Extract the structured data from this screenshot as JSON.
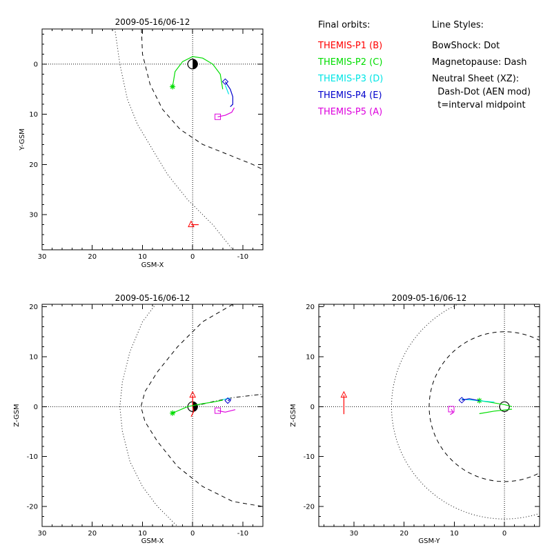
{
  "colors": {
    "THEMIS-P1": "#ff0000",
    "THEMIS-P2": "#00dd00",
    "THEMIS-P3": "#00e5e5",
    "THEMIS-P4": "#0000cc",
    "THEMIS-P5": "#dd00dd"
  },
  "legend": {
    "orbits_header": "Final orbits:",
    "orbits": [
      {
        "label": "THEMIS-P1 (B)",
        "probe": "THEMIS-P1"
      },
      {
        "label": "THEMIS-P2 (C)",
        "probe": "THEMIS-P2"
      },
      {
        "label": "THEMIS-P3 (D)",
        "probe": "THEMIS-P3"
      },
      {
        "label": "THEMIS-P4 (E)",
        "probe": "THEMIS-P4"
      },
      {
        "label": "THEMIS-P5 (A)",
        "probe": "THEMIS-P5"
      }
    ],
    "styles_header": "Line Styles:",
    "styles": [
      "BowShock: Dot",
      "Magnetopause: Dash",
      "Neutral Sheet (XZ):",
      "  Dash-Dot (AEN mod)",
      "  t=interval midpoint"
    ]
  },
  "chart_data": [
    {
      "type": "scatter",
      "title": "2009-05-16/06-12",
      "xlabel": "GSM-X",
      "ylabel": "Y-GSM",
      "xlim": [
        30,
        -14
      ],
      "ylim": [
        -7,
        37
      ],
      "y_inverted": true,
      "xticks": [
        30,
        20,
        10,
        0,
        -10
      ],
      "yticks": [
        0,
        10,
        20,
        30
      ],
      "earth": [
        0,
        0
      ],
      "bowshock": {
        "style": "dotted",
        "points": [
          [
            15.5,
            -7
          ],
          [
            14.5,
            0
          ],
          [
            13,
            7
          ],
          [
            11,
            12
          ],
          [
            8,
            17
          ],
          [
            5,
            22
          ],
          [
            1,
            27
          ],
          [
            -4,
            32
          ],
          [
            -8,
            37
          ]
        ]
      },
      "magnetopause": {
        "style": "dashed",
        "points": [
          [
            10.2,
            -7
          ],
          [
            10,
            -2
          ],
          [
            8.5,
            4
          ],
          [
            6,
            9
          ],
          [
            2.5,
            13
          ],
          [
            -2,
            16
          ],
          [
            -7,
            18
          ],
          [
            -12,
            20
          ],
          [
            -14,
            21
          ]
        ]
      },
      "series": [
        {
          "probe": "THEMIS-P1",
          "marker": "triangle",
          "x": [
            0.3,
            -1.2
          ],
          "y": [
            32,
            32
          ]
        },
        {
          "probe": "THEMIS-P2",
          "marker": "asterisk",
          "x": [
            4,
            3.5,
            2,
            0,
            -2,
            -4,
            -5.5,
            -6
          ],
          "y": [
            4.5,
            1.5,
            -0.5,
            -1.5,
            -1.2,
            0,
            2,
            5
          ]
        },
        {
          "probe": "THEMIS-P3",
          "marker": "none",
          "x": [
            -6.5,
            -7.2
          ],
          "y": [
            4.2,
            6
          ]
        },
        {
          "probe": "THEMIS-P4",
          "marker": "diamond",
          "x": [
            -6.5,
            -7.5,
            -8,
            -8,
            -7.5
          ],
          "y": [
            3.5,
            5,
            6.5,
            8,
            8.5
          ]
        },
        {
          "probe": "THEMIS-P5",
          "marker": "square",
          "x": [
            -5,
            -6.5,
            -7.8,
            -8.3
          ],
          "y": [
            10.5,
            10.2,
            9.6,
            8.7
          ]
        }
      ]
    },
    {
      "type": "scatter",
      "title": "2009-05-16/06-12",
      "xlabel": "GSM-X",
      "ylabel": "Z-GSM",
      "xlim": [
        30,
        -14
      ],
      "ylim": [
        -24,
        20.5
      ],
      "xticks": [
        30,
        20,
        10,
        0,
        -10
      ],
      "yticks": [
        -20,
        -10,
        0,
        10,
        20
      ],
      "earth": [
        0,
        0
      ],
      "bowshock": {
        "style": "dotted",
        "points": [
          [
            7,
            21
          ],
          [
            10,
            17
          ],
          [
            12.5,
            11
          ],
          [
            14,
            5
          ],
          [
            14.5,
            0
          ],
          [
            14,
            -5
          ],
          [
            12.5,
            -11
          ],
          [
            10,
            -16
          ],
          [
            7,
            -20
          ],
          [
            3,
            -24
          ]
        ]
      },
      "magnetopause": {
        "style": "dashed",
        "points": [
          [
            -8,
            20.5
          ],
          [
            -2,
            17
          ],
          [
            3,
            12
          ],
          [
            7,
            7
          ],
          [
            9.5,
            3
          ],
          [
            10.3,
            0
          ],
          [
            9.5,
            -3
          ],
          [
            7,
            -7
          ],
          [
            3,
            -12
          ],
          [
            -2,
            -16
          ],
          [
            -8,
            -19
          ],
          [
            -14,
            -20
          ]
        ]
      },
      "neutral_sheet": {
        "style": "dashdot",
        "points": [
          [
            0,
            0
          ],
          [
            -4,
            1
          ],
          [
            -8,
            1.8
          ],
          [
            -14,
            2.5
          ]
        ]
      },
      "series": [
        {
          "probe": "THEMIS-P1",
          "marker": "triangle",
          "x": [
            0,
            0,
            -0.2,
            0.3
          ],
          "y": [
            2.3,
            0,
            -1,
            -2
          ]
        },
        {
          "probe": "THEMIS-P2",
          "marker": "asterisk",
          "x": [
            4,
            1,
            -2,
            -4,
            -6
          ],
          "y": [
            -1.3,
            0,
            0.6,
            0.9,
            1.3
          ]
        },
        {
          "probe": "THEMIS-P3",
          "marker": "none",
          "x": [
            -6,
            -7.5
          ],
          "y": [
            1.4,
            1.7
          ]
        },
        {
          "probe": "THEMIS-P4",
          "marker": "diamond",
          "x": [
            -7,
            -7.7
          ],
          "y": [
            1.2,
            1.5
          ]
        },
        {
          "probe": "THEMIS-P5",
          "marker": "square",
          "x": [
            -5,
            -6.5,
            -8.5
          ],
          "y": [
            -0.8,
            -1.1,
            -0.6
          ]
        }
      ]
    },
    {
      "type": "scatter",
      "title": "2009-05-16/06-12",
      "xlabel": "GSM-Y",
      "ylabel": "Z-GSM",
      "xlim": [
        37,
        -7
      ],
      "ylim": [
        -24,
        20.5
      ],
      "xticks": [
        30,
        20,
        10,
        0
      ],
      "yticks": [
        -20,
        -10,
        0,
        10,
        20
      ],
      "earth": [
        0,
        0
      ],
      "bowshock": {
        "style": "dotted",
        "circle": 22.5
      },
      "magnetopause": {
        "style": "dashed",
        "circle": 15
      },
      "series": [
        {
          "probe": "THEMIS-P1",
          "marker": "triangle",
          "x": [
            32,
            32
          ],
          "y": [
            2.3,
            -1.5
          ]
        },
        {
          "probe": "THEMIS-P2",
          "marker": "asterisk",
          "x": [
            5,
            3,
            0,
            -1.5
          ],
          "y": [
            1.2,
            0.9,
            0.4,
            0
          ],
          "extra": {
            "x": [
              5,
              2,
              -1.5
            ],
            "y": [
              -1.4,
              -0.9,
              -0.5
            ]
          }
        },
        {
          "probe": "THEMIS-P3",
          "marker": "none",
          "x": [
            8.5,
            5,
            2
          ],
          "y": [
            1.5,
            1.2,
            0.9
          ]
        },
        {
          "probe": "THEMIS-P4",
          "marker": "diamond",
          "x": [
            8.5,
            7,
            5
          ],
          "y": [
            1.3,
            1.6,
            1.2
          ]
        },
        {
          "probe": "THEMIS-P5",
          "marker": "square",
          "x": [
            10.6,
            10.2,
            10.8
          ],
          "y": [
            -0.5,
            -1.2,
            -1.6
          ]
        }
      ]
    }
  ]
}
